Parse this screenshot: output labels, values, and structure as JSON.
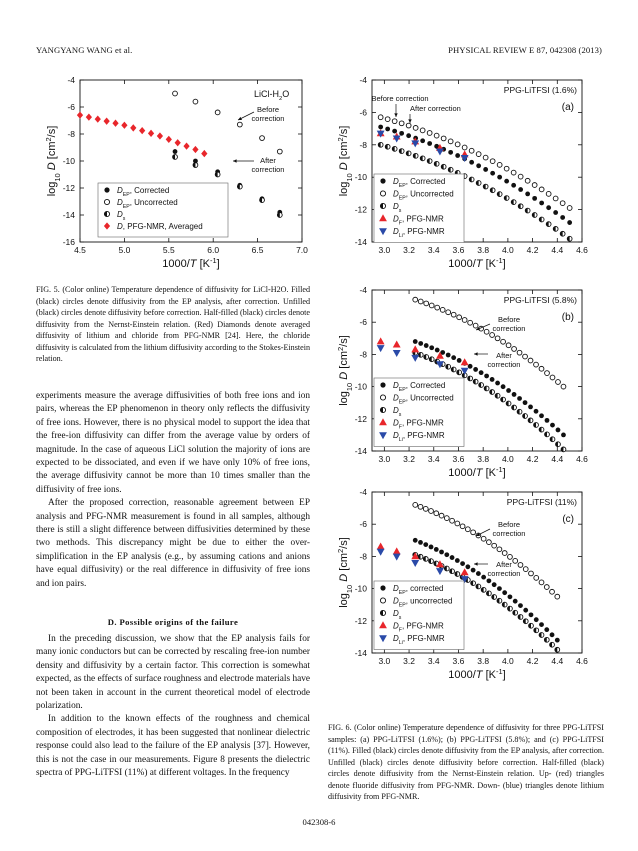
{
  "header": {
    "left": "YANGYANG WANG et al.",
    "right": "PHYSICAL REVIEW E 87, 042308 (2013)"
  },
  "figure5": {
    "caption": "FIG. 5. (Color online) Temperature dependence of diffusivity for LiCl-H2O. Filled (black) circles denote diffusivity from the EP analysis, after correction. Unfilled (black) circles denote diffusivity before correction. Half-filled (black) circles denote diffusivity from the Nernst-Einstein relation. (Red) Diamonds denote averaged diffusivity of lithium and chloride from PFG-NMR [24]. Here, the chloride diffusivity is calculated from the lithium diffusivity according to the Stokes-Einstein relation."
  },
  "figure6": {
    "caption": "FIG. 6. (Color online) Temperature dependence of diffusivity for three PPG-LiTFSI samples: (a) PPG-LiTFSI (1.6%); (b) PPG-LiTFSI (5.8%); and (c) PPG-LiTFSI (11%). Filled (black) circles denote diffusivity from the EP analysis, after correction. Unfilled (black) circles denote diffusivity before correction. Half-filled (black) circles denote diffusivity from the Nernst-Einstein relation. Up- (red) triangles denote fluoride diffusivity from PFG-NMR. Down- (blue) triangles denote lithium diffusivity from PFG-NMR."
  },
  "body": {
    "para1": "experiments measure the average diffusivities of both free ions and ion pairs, whereas the EP phenomenon in theory only reflects the diffusivity of free ions. However, there is no physical model to support the idea that the free-ion diffusivity can differ from the average value by orders of magnitude. In the case of aqueous LiCl solution the majority of ions are expected to be dissociated, and even if we have only 10% of free ions, the average diffusivity cannot be more than 10 times smaller than the diffusivity of free ions.",
    "para2": "After the proposed correction, reasonable agreement between EP analysis and PFG-NMR measurement is found in all samples, although there is still a slight difference between diffusivities determined by these two methods. This discrepancy might be due to either the over-simplification in the EP analysis (e.g., by assuming cations and anions have equal diffusivity) or the real difference in diffusivity of free ions and ion pairs.",
    "section_heading": "D. Possible origins of the failure",
    "para3": "In the preceding discussion, we show that the EP analysis fails for many ionic conductors but can be corrected by rescaling free-ion number density and diffusivity by a certain factor. This correction is somewhat expected, as the effects of surface roughness and electrode materials have not been taken in account in the current theoretical model of electrode polarization.",
    "para4": "In addition to the known effects of the roughness and chemical composition of electrodes, it has been suggested that nonlinear dielectric response could also lead to the failure of the EP analysis [37]. However, this is not the case in our measurements. Figure 8 presents the dielectric spectra of PPG-LiTFSI (11%) at different voltages. In the frequency"
  },
  "page_number": "042308-6",
  "colors": {
    "red": "#e8262b",
    "blue": "#2a4aa8",
    "black": "#111111"
  },
  "chart_data": [
    {
      "id": "fig5",
      "type": "scatter",
      "title": "LiCl-H2O",
      "xlabel": "1000/T [K-1]",
      "ylabel": "log10 D [cm2/s]",
      "xlim": [
        4.5,
        7.0
      ],
      "ylim": [
        -16,
        -4
      ],
      "xticks": [
        "4.5",
        "5.0",
        "5.5",
        "6.0",
        "6.5",
        "7.0"
      ],
      "yticks": [
        "-4",
        "-6",
        "-8",
        "-10",
        "-12",
        "-14",
        "-16"
      ],
      "annotations": [
        "Before correction",
        "After correction"
      ],
      "legend": [
        "D_EP, Corrected",
        "D_EP, Uncorrected",
        "D_s",
        "D, PFG-NMR, Averaged"
      ],
      "series": [
        {
          "name": "D_EP, Corrected",
          "marker": "filled-circle",
          "x": [
            5.57,
            5.8,
            6.05,
            6.3,
            6.55,
            6.75
          ],
          "y": [
            -9.3,
            -10.0,
            -10.8,
            -11.8,
            -12.8,
            -13.8
          ]
        },
        {
          "name": "D_EP, Uncorrected",
          "marker": "open-circle",
          "x": [
            5.57,
            5.8,
            6.05,
            6.3,
            6.55,
            6.75
          ],
          "y": [
            -5.0,
            -5.6,
            -6.4,
            -7.3,
            -8.3,
            -9.3
          ]
        },
        {
          "name": "D_s",
          "marker": "half-circle",
          "x": [
            5.57,
            5.8,
            6.05,
            6.3,
            6.55,
            6.75
          ],
          "y": [
            -9.7,
            -10.3,
            -11.0,
            -11.9,
            -12.9,
            -14.0
          ]
        },
        {
          "name": "D, PFG-NMR, Averaged",
          "marker": "diamond",
          "x": [
            4.5,
            4.6,
            4.7,
            4.8,
            4.9,
            5.0,
            5.1,
            5.2,
            5.3,
            5.4,
            5.5,
            5.6,
            5.7,
            5.8,
            5.9
          ],
          "y": [
            -6.6,
            -6.75,
            -6.9,
            -7.05,
            -7.2,
            -7.35,
            -7.55,
            -7.75,
            -7.95,
            -8.15,
            -8.4,
            -8.65,
            -8.9,
            -9.15,
            -9.45
          ]
        }
      ]
    },
    {
      "id": "fig6a",
      "type": "scatter",
      "title": "PPG-LiTFSI (1.6%)",
      "panel_label": "(a)",
      "xlabel": "1000/T [K-1]",
      "ylabel": "log10 D [cm2/s]",
      "xlim": [
        2.9,
        4.6
      ],
      "ylim": [
        -14,
        -4
      ],
      "xticks": [
        "3.0",
        "3.2",
        "3.4",
        "3.6",
        "3.8",
        "4.0",
        "4.2",
        "4.4",
        "4.6"
      ],
      "yticks": [
        "-4",
        "-6",
        "-8",
        "-10",
        "-12",
        "-14"
      ],
      "annotations": [
        "Before correction",
        "After correction"
      ],
      "legend": [
        "D_EP, Corrected",
        "D_EP, Uncorrected",
        "D_s",
        "D_F, PFG-NMR",
        "D_Li, PFG-NMR"
      ],
      "series": [
        {
          "name": "D_EP, Corrected",
          "marker": "filled-circle",
          "x_range": [
            2.97,
            4.5
          ],
          "y_range": [
            -6.9,
            -12.8
          ]
        },
        {
          "name": "D_EP, Uncorrected",
          "marker": "open-circle",
          "x_range": [
            2.97,
            4.5
          ],
          "y_range": [
            -6.3,
            -11.9
          ]
        },
        {
          "name": "D_s",
          "marker": "half-circle",
          "x_range": [
            2.97,
            4.5
          ],
          "y_range": [
            -8.0,
            -13.8
          ]
        },
        {
          "name": "D_F, PFG-NMR",
          "marker": "triangle-up",
          "x": [
            2.97,
            3.1,
            3.25,
            3.45,
            3.65
          ],
          "y": [
            -7.3,
            -7.5,
            -7.8,
            -8.2,
            -8.6
          ]
        },
        {
          "name": "D_Li, PFG-NMR",
          "marker": "triangle-down",
          "x": [
            2.97,
            3.1,
            3.25,
            3.45,
            3.65
          ],
          "y": [
            -7.3,
            -7.6,
            -7.9,
            -8.4,
            -8.8
          ]
        }
      ]
    },
    {
      "id": "fig6b",
      "type": "scatter",
      "title": "PPG-LiTFSI (5.8%)",
      "panel_label": "(b)",
      "xlabel": "1000/T [K-1]",
      "ylabel": "log10 D [cm2/s]",
      "xlim": [
        2.9,
        4.6
      ],
      "ylim": [
        -14,
        -4
      ],
      "xticks": [
        "3.0",
        "3.2",
        "3.4",
        "3.6",
        "3.8",
        "4.0",
        "4.2",
        "4.4",
        "4.6"
      ],
      "yticks": [
        "-4",
        "-6",
        "-8",
        "-10",
        "-12",
        "-14"
      ],
      "annotations": [
        "Before correction",
        "After correction"
      ],
      "legend": [
        "D_EP, Corrected",
        "D_EP, Uncorrected",
        "D_s",
        "D_F, PFG-NMR",
        "D_Li, PFG-NMR"
      ],
      "series": [
        {
          "name": "D_EP, Corrected",
          "marker": "filled-circle",
          "x_range": [
            3.25,
            4.45
          ],
          "y_range": [
            -7.2,
            -13.0
          ]
        },
        {
          "name": "D_EP, Uncorrected",
          "marker": "open-circle",
          "x_range": [
            3.25,
            4.45
          ],
          "y_range": [
            -4.6,
            -10.0
          ]
        },
        {
          "name": "D_s",
          "marker": "half-circle",
          "x_range": [
            3.25,
            4.45
          ],
          "y_range": [
            -7.9,
            -13.9
          ]
        },
        {
          "name": "D_F, PFG-NMR",
          "marker": "triangle-up",
          "x": [
            2.97,
            3.1,
            3.25,
            3.45,
            3.65
          ],
          "y": [
            -7.2,
            -7.4,
            -7.7,
            -8.1,
            -8.5
          ]
        },
        {
          "name": "D_Li, PFG-NMR",
          "marker": "triangle-down",
          "x": [
            2.97,
            3.1,
            3.25,
            3.45,
            3.65
          ],
          "y": [
            -7.6,
            -7.9,
            -8.2,
            -8.6,
            -9.0
          ]
        }
      ]
    },
    {
      "id": "fig6c",
      "type": "scatter",
      "title": "PPG-LiTFSI (11%)",
      "panel_label": "(c)",
      "xlabel": "1000/T [K-1]",
      "ylabel": "log10 D [cm2/s]",
      "xlim": [
        2.9,
        4.6
      ],
      "ylim": [
        -14,
        -4
      ],
      "xticks": [
        "3.0",
        "3.2",
        "3.4",
        "3.6",
        "3.8",
        "4.0",
        "4.2",
        "4.4",
        "4.6"
      ],
      "yticks": [
        "-4",
        "-6",
        "-8",
        "-10",
        "-12",
        "-14"
      ],
      "annotations": [
        "Before correction",
        "After correction"
      ],
      "legend": [
        "D_EP, corrected",
        "D_EP, uncorrected",
        "D_s",
        "D_F, PFG-NMR",
        "D_Li, PFG-NMR"
      ],
      "series": [
        {
          "name": "D_EP, corrected",
          "marker": "filled-circle",
          "x_range": [
            3.25,
            4.4
          ],
          "y_range": [
            -7.0,
            -13.2
          ]
        },
        {
          "name": "D_EP, uncorrected",
          "marker": "open-circle",
          "x_range": [
            3.25,
            4.4
          ],
          "y_range": [
            -4.8,
            -10.5
          ]
        },
        {
          "name": "D_s",
          "marker": "half-circle",
          "x_range": [
            3.25,
            4.4
          ],
          "y_range": [
            -7.9,
            -13.8
          ]
        },
        {
          "name": "D_F, PFG-NMR",
          "marker": "triangle-up",
          "x": [
            2.97,
            3.1,
            3.25,
            3.45,
            3.65
          ],
          "y": [
            -7.4,
            -7.7,
            -8.0,
            -8.5,
            -9.0
          ]
        },
        {
          "name": "D_Li, PFG-NMR",
          "marker": "triangle-down",
          "x": [
            2.97,
            3.1,
            3.25,
            3.45,
            3.65
          ],
          "y": [
            -7.7,
            -8.0,
            -8.4,
            -8.9,
            -9.4
          ]
        }
      ]
    }
  ]
}
